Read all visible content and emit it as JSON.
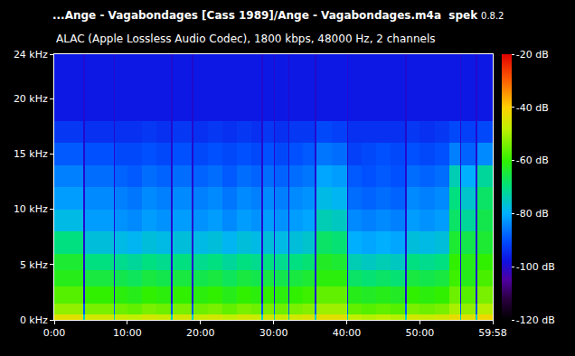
{
  "chart_data": {
    "type": "heatmap",
    "title": "...Ange - Vagabondages [Cass 1989]/Ange - Vagabondages.m4a",
    "app": "spek",
    "version": "0.8.2",
    "subtitle": "ALAC (Apple Lossless Audio Codec), 1800 kbps, 48000 Hz, 2 channels",
    "xbins": [
      0,
      240,
      250,
      490,
      500,
      600,
      720,
      840,
      960,
      975,
      1130,
      1140,
      1260,
      1380,
      1500,
      1620,
      1700,
      1710,
      1800,
      1810,
      1920,
      1930,
      2040,
      2140,
      2150,
      2280,
      2400,
      2410,
      2520,
      2640,
      2760,
      2880,
      2890,
      3000,
      3120,
      3240,
      3330,
      3340,
      3460,
      3470,
      3598
    ],
    "ybins": [
      0,
      0.5,
      1.5,
      3,
      4.5,
      6,
      8,
      10,
      12,
      14,
      16,
      18,
      24
    ],
    "z": [
      [
        -44,
        -76,
        -46,
        -76,
        -47,
        -48,
        -46,
        -47,
        -76,
        -46,
        -76,
        -47,
        -46,
        -48,
        -46,
        -47,
        -76,
        -46,
        -76,
        -47,
        -76,
        -46,
        -45,
        -76,
        -44,
        -44,
        -76,
        -48,
        -49,
        -48,
        -49,
        -76,
        -46,
        -47,
        -46,
        -43,
        -76,
        -44,
        -76,
        -42
      ],
      [
        -52,
        -90,
        -54,
        -90,
        -55,
        -56,
        -54,
        -55,
        -90,
        -54,
        -90,
        -55,
        -54,
        -56,
        -54,
        -55,
        -90,
        -54,
        -90,
        -55,
        -90,
        -54,
        -53,
        -90,
        -51,
        -51,
        -90,
        -56,
        -57,
        -56,
        -57,
        -90,
        -54,
        -55,
        -54,
        -50,
        -90,
        -52,
        -90,
        -49
      ],
      [
        -57,
        -100,
        -60,
        -100,
        -61,
        -62,
        -60,
        -61,
        -100,
        -60,
        -100,
        -61,
        -60,
        -62,
        -60,
        -61,
        -100,
        -60,
        -100,
        -61,
        -100,
        -60,
        -59,
        -100,
        -56,
        -56,
        -100,
        -62,
        -63,
        -62,
        -63,
        -100,
        -60,
        -61,
        -60,
        -55,
        -100,
        -57,
        -100,
        -54
      ],
      [
        -62,
        -100,
        -65,
        -100,
        -66,
        -67,
        -65,
        -66,
        -100,
        -65,
        -100,
        -66,
        -65,
        -67,
        -65,
        -66,
        -100,
        -65,
        -100,
        -66,
        -100,
        -65,
        -64,
        -100,
        -61,
        -61,
        -100,
        -68,
        -69,
        -68,
        -69,
        -100,
        -65,
        -66,
        -65,
        -59,
        -100,
        -62,
        -100,
        -58
      ],
      [
        -64,
        -100,
        -70,
        -100,
        -71,
        -72,
        -70,
        -71,
        -100,
        -70,
        -100,
        -71,
        -70,
        -72,
        -70,
        -71,
        -100,
        -70,
        -100,
        -71,
        -100,
        -70,
        -69,
        -100,
        -63,
        -64,
        -100,
        -74,
        -75,
        -74,
        -75,
        -100,
        -70,
        -71,
        -70,
        -60,
        -100,
        -62,
        -100,
        -60
      ],
      [
        -70,
        -100,
        -77,
        -100,
        -78,
        -79,
        -77,
        -78,
        -100,
        -77,
        -100,
        -78,
        -77,
        -79,
        -77,
        -78,
        -100,
        -77,
        -100,
        -78,
        -100,
        -77,
        -76,
        -100,
        -68,
        -69,
        -100,
        -80,
        -81,
        -80,
        -81,
        -100,
        -77,
        -78,
        -77,
        -64,
        -100,
        -66,
        -100,
        -64
      ],
      [
        -78,
        -100,
        -82,
        -100,
        -83,
        -84,
        -82,
        -83,
        -100,
        -82,
        -100,
        -83,
        -82,
        -84,
        -82,
        -83,
        -100,
        -82,
        -100,
        -83,
        -100,
        -82,
        -81,
        -100,
        -74,
        -75,
        -100,
        -84,
        -85,
        -84,
        -85,
        -100,
        -82,
        -83,
        -82,
        -68,
        -100,
        -72,
        -100,
        -66
      ],
      [
        -82,
        -100,
        -84,
        -100,
        -85,
        -86,
        -84,
        -85,
        -100,
        -84,
        -100,
        -85,
        -84,
        -86,
        -84,
        -85,
        -100,
        -84,
        -100,
        -85,
        -100,
        -84,
        -83,
        -100,
        -78,
        -79,
        -100,
        -87,
        -88,
        -87,
        -88,
        -100,
        -84,
        -85,
        -84,
        -70,
        -100,
        -76,
        -100,
        -68
      ],
      [
        -85,
        -100,
        -87,
        -100,
        -88,
        -89,
        -87,
        -88,
        -100,
        -87,
        -100,
        -88,
        -87,
        -89,
        -87,
        -88,
        -100,
        -87,
        -100,
        -88,
        -100,
        -87,
        -86,
        -100,
        -81,
        -82,
        -100,
        -89,
        -90,
        -89,
        -90,
        -100,
        -87,
        -88,
        -87,
        -74,
        -100,
        -80,
        -100,
        -72
      ],
      [
        -89,
        -100,
        -90,
        -100,
        -91,
        -91,
        -90,
        -91,
        -100,
        -90,
        -100,
        -91,
        -90,
        -91,
        -90,
        -91,
        -100,
        -90,
        -100,
        -91,
        -100,
        -90,
        -89,
        -100,
        -86,
        -87,
        -100,
        -92,
        -91,
        -90,
        -91,
        -100,
        -90,
        -91,
        -90,
        -85,
        -100,
        -88,
        -100,
        -84
      ],
      [
        -93,
        -100,
        -94,
        -100,
        -94,
        -94,
        -93,
        -94,
        -100,
        -93,
        -100,
        -94,
        -93,
        -94,
        -93,
        -94,
        -100,
        -93,
        -100,
        -94,
        -100,
        -93,
        -93,
        -100,
        -91,
        -92,
        -100,
        -94,
        -94,
        -94,
        -94,
        -100,
        -93,
        -94,
        -93,
        -91,
        -100,
        -92,
        -100,
        -91
      ],
      [
        -97,
        -100,
        -97,
        -100,
        -97,
        -97,
        -97,
        -97,
        -100,
        -97,
        -100,
        -97,
        -97,
        -97,
        -97,
        -97,
        -100,
        -97,
        -100,
        -97,
        -100,
        -97,
        -97,
        -100,
        -97,
        -97,
        -100,
        -97,
        -97,
        -97,
        -97,
        -100,
        -97,
        -97,
        -97,
        -97,
        -100,
        -97,
        -100,
        -97
      ]
    ],
    "xlim": [
      0,
      3598
    ],
    "xticks": [
      {
        "value": 0,
        "label": "0:00"
      },
      {
        "value": 600,
        "label": "10:00"
      },
      {
        "value": 1200,
        "label": "20:00"
      },
      {
        "value": 1800,
        "label": "30:00"
      },
      {
        "value": 2400,
        "label": "40:00"
      },
      {
        "value": 3000,
        "label": "50:00"
      },
      {
        "value": 3598,
        "label": "59:58"
      }
    ],
    "ylim": [
      0,
      24
    ],
    "yticks": [
      {
        "value": 0,
        "label": "0 kHz"
      },
      {
        "value": 5,
        "label": "5 kHz"
      },
      {
        "value": 10,
        "label": "10 kHz"
      },
      {
        "value": 15,
        "label": "15 kHz"
      },
      {
        "value": 20,
        "label": "20 kHz"
      },
      {
        "value": 24,
        "label": "24 kHz"
      }
    ],
    "zlim": [
      -120,
      -20
    ],
    "zticks": [
      {
        "value": -20,
        "label": "-20 dB"
      },
      {
        "value": -40,
        "label": "-40 dB"
      },
      {
        "value": -60,
        "label": "-60 dB"
      },
      {
        "value": -80,
        "label": "-80 dB"
      },
      {
        "value": -100,
        "label": "-100 dB"
      },
      {
        "value": -120,
        "label": "-120 dB"
      }
    ],
    "grid": false
  }
}
